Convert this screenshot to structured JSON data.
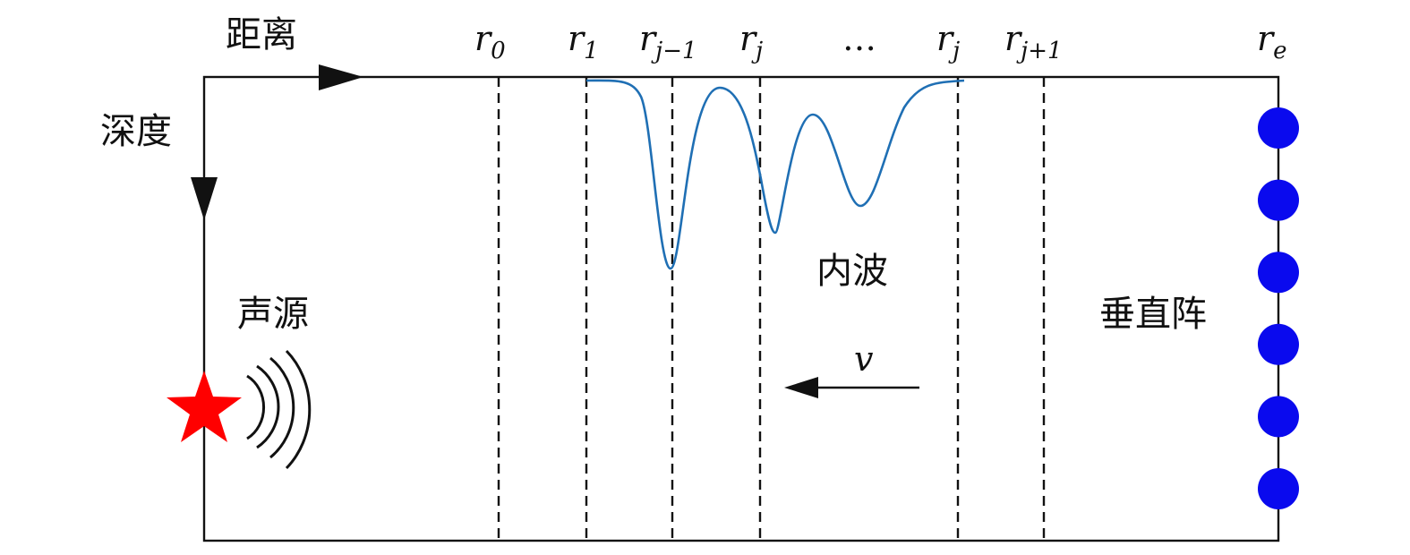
{
  "labels": {
    "distance": "距离",
    "depth": "深度",
    "source": "声源",
    "internal_wave": "内波",
    "vertical_array": "垂直阵",
    "velocity": "v"
  },
  "range_markers": [
    {
      "base": "r",
      "sub": "0",
      "sub_italic": false
    },
    {
      "base": "r",
      "sub": "1",
      "sub_italic": false
    },
    {
      "base": "r",
      "sub": "j−1",
      "sub_italic": true
    },
    {
      "base": "r",
      "sub": "j",
      "sub_italic": true
    },
    {
      "base": "…",
      "sub": "",
      "sub_italic": false
    },
    {
      "base": "r",
      "sub": "j",
      "sub_italic": true
    },
    {
      "base": "r",
      "sub": "j+1",
      "sub_italic": true
    },
    {
      "base": "r",
      "sub": "e",
      "sub_italic": false
    }
  ],
  "hydrophones": {
    "count": 6,
    "color": "#0a0aee"
  },
  "colors": {
    "source_star": "#ff0000",
    "wave_curve": "#1f6fb4",
    "outline": "#111111"
  },
  "icons": {
    "source": "star-icon",
    "emission": "sound-wave-arcs-icon",
    "hydrophone": "circle-icon"
  }
}
